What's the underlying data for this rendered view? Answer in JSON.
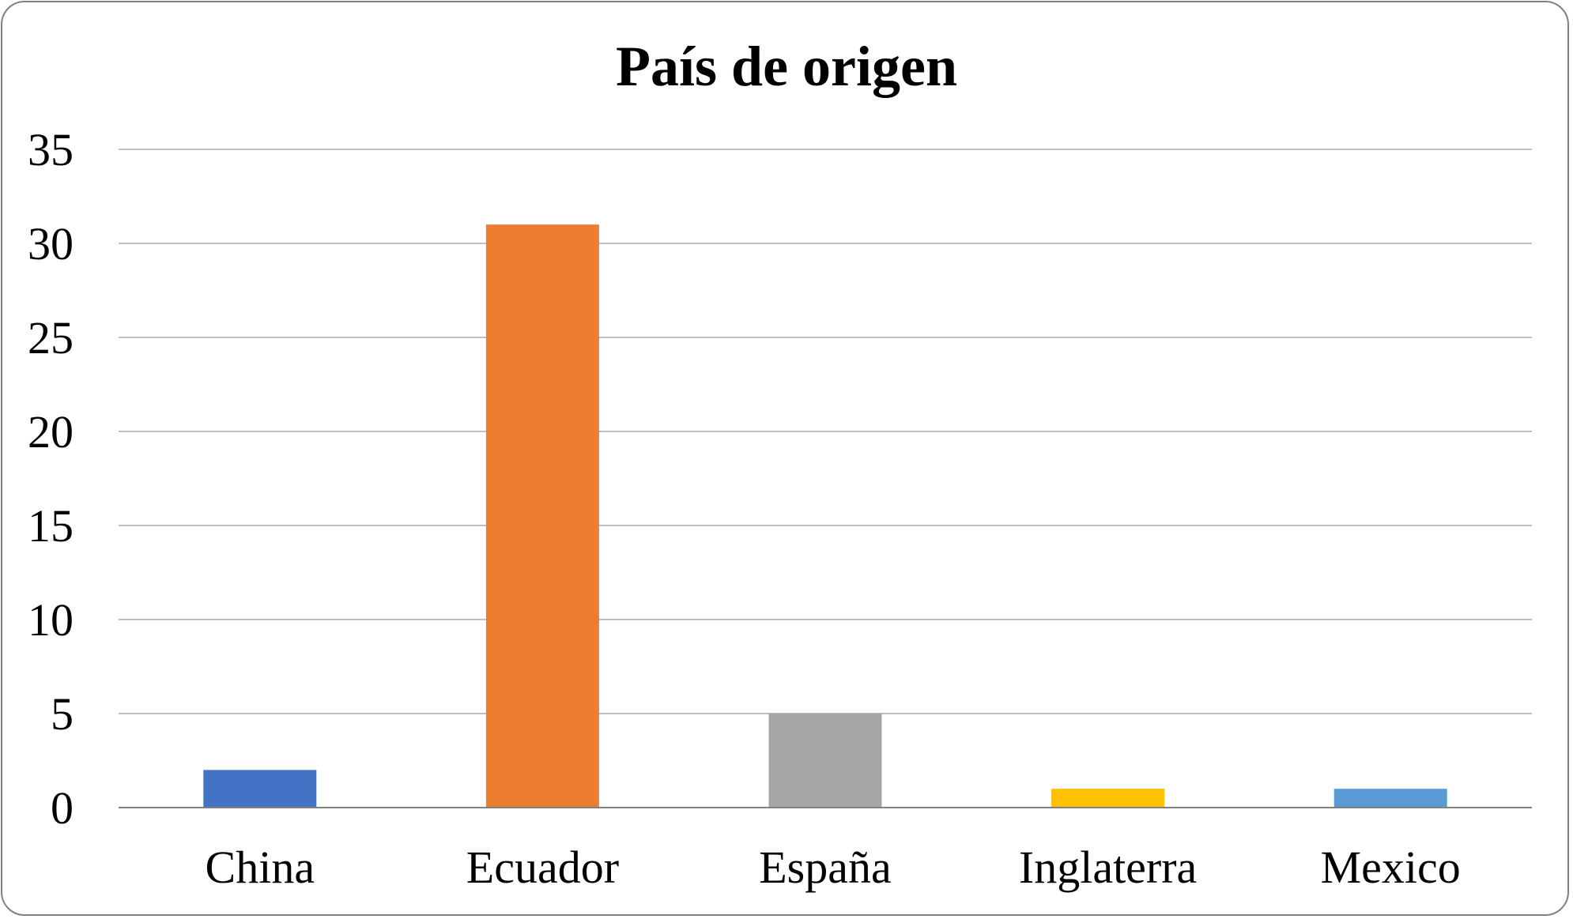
{
  "chart_data": {
    "type": "bar",
    "title": "País de origen",
    "xlabel": "",
    "ylabel": "",
    "categories": [
      "China",
      "Ecuador",
      "España",
      "Inglaterra",
      "Mexico"
    ],
    "values": [
      2,
      31,
      5,
      1,
      1
    ],
    "colors": [
      "#4472c4",
      "#ed7d31",
      "#a5a5a5",
      "#ffc000",
      "#5b9bd5"
    ],
    "ylim": [
      0,
      35
    ],
    "yticks": [
      "0",
      "5",
      "10",
      "15",
      "20",
      "25",
      "30",
      "35"
    ],
    "grid": true,
    "legend": "none"
  }
}
